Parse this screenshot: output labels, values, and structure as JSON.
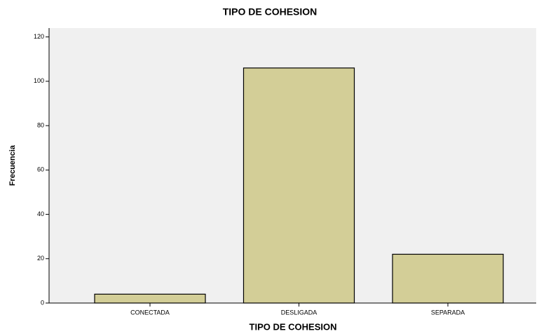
{
  "chart_data": {
    "type": "bar",
    "title": "TIPO DE COHESION",
    "x_label": "TIPO DE COHESION",
    "y_label": "Frecuencia",
    "categories": [
      "CONECTADA",
      "DESLIGADA",
      "SEPARADA"
    ],
    "values": [
      4,
      106,
      22
    ],
    "color": "#d3ce97",
    "ylim": [
      0,
      124
    ],
    "yticks": [
      0,
      20,
      40,
      60,
      80,
      100,
      120
    ]
  }
}
